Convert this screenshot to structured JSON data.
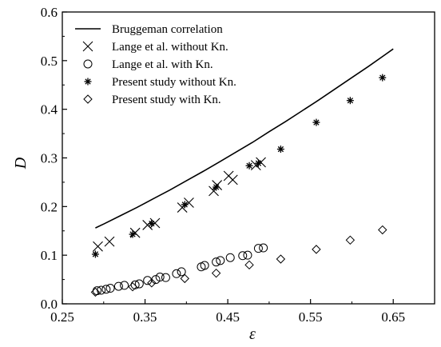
{
  "chart_data": {
    "type": "scatter",
    "xlabel": "ε",
    "ylabel": "D",
    "xlim": [
      0.25,
      0.7
    ],
    "ylim": [
      0.0,
      0.6
    ],
    "x_ticks": [
      0.25,
      0.35,
      0.45,
      0.55,
      0.65
    ],
    "x_tick_labels": [
      "0.25",
      "0.35",
      "0.45",
      "0.55",
      "0.65"
    ],
    "y_ticks": [
      0.0,
      0.1,
      0.2,
      0.3,
      0.4,
      0.5,
      0.6
    ],
    "y_tick_labels": [
      "0.0",
      "0.1",
      "0.2",
      "0.3",
      "0.4",
      "0.5",
      "0.6"
    ],
    "legend_position": "top-left",
    "grid": false,
    "series": [
      {
        "name": "Bruggeman correlation",
        "kind": "line",
        "x": [
          0.29,
          0.3,
          0.32,
          0.34,
          0.36,
          0.38,
          0.4,
          0.42,
          0.44,
          0.46,
          0.48,
          0.5,
          0.52,
          0.54,
          0.56,
          0.58,
          0.6,
          0.62,
          0.64,
          0.65
        ],
        "y": [
          0.156,
          0.164,
          0.181,
          0.198,
          0.216,
          0.234,
          0.253,
          0.272,
          0.292,
          0.312,
          0.332,
          0.354,
          0.375,
          0.397,
          0.419,
          0.442,
          0.465,
          0.488,
          0.512,
          0.524
        ]
      },
      {
        "name": "Lange et al. without Kn.",
        "marker": "x",
        "x": [
          0.293,
          0.307,
          0.338,
          0.353,
          0.362,
          0.395,
          0.403,
          0.433,
          0.437,
          0.451,
          0.456,
          0.484,
          0.49
        ],
        "y": [
          0.118,
          0.128,
          0.146,
          0.162,
          0.166,
          0.198,
          0.208,
          0.232,
          0.244,
          0.263,
          0.255,
          0.285,
          0.291
        ]
      },
      {
        "name": "Lange et al. with Kn.",
        "marker": "circle",
        "x": [
          0.292,
          0.297,
          0.303,
          0.308,
          0.318,
          0.325,
          0.338,
          0.343,
          0.353,
          0.363,
          0.368,
          0.375,
          0.388,
          0.394,
          0.418,
          0.422,
          0.436,
          0.441,
          0.453,
          0.468,
          0.474,
          0.487,
          0.493
        ],
        "y": [
          0.027,
          0.028,
          0.03,
          0.032,
          0.036,
          0.038,
          0.039,
          0.041,
          0.048,
          0.05,
          0.055,
          0.054,
          0.062,
          0.066,
          0.076,
          0.079,
          0.086,
          0.089,
          0.095,
          0.099,
          0.1,
          0.114,
          0.115
        ]
      },
      {
        "name": "Present study without Kn.",
        "marker": "asterisk",
        "x": [
          0.29,
          0.335,
          0.358,
          0.398,
          0.436,
          0.476,
          0.487,
          0.514,
          0.557,
          0.598,
          0.637
        ],
        "y": [
          0.102,
          0.143,
          0.165,
          0.204,
          0.24,
          0.284,
          0.289,
          0.318,
          0.373,
          0.418,
          0.465
        ]
      },
      {
        "name": "Present study with Kn.",
        "marker": "diamond",
        "x": [
          0.29,
          0.335,
          0.358,
          0.398,
          0.436,
          0.476,
          0.514,
          0.557,
          0.598,
          0.637
        ],
        "y": [
          0.024,
          0.035,
          0.043,
          0.052,
          0.063,
          0.08,
          0.092,
          0.112,
          0.131,
          0.152
        ]
      }
    ]
  }
}
